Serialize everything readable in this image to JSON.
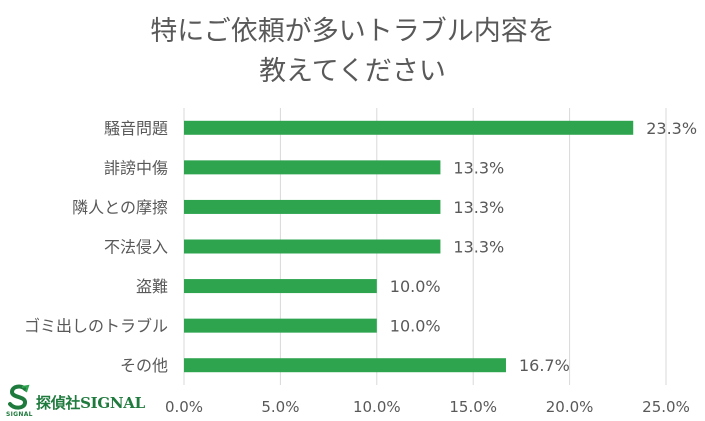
{
  "chart_data": {
    "type": "bar",
    "orientation": "horizontal",
    "title_lines": [
      "特にご依頼が多いトラブル内容を",
      "教えてください"
    ],
    "categories": [
      "騒音問題",
      "誹謗中傷",
      "隣人との摩擦",
      "不法侵入",
      "盗難",
      "ゴミ出しのトラブル",
      "その他"
    ],
    "values": [
      23.3,
      13.3,
      13.3,
      13.3,
      10.0,
      10.0,
      16.7
    ],
    "data_labels": [
      "23.3%",
      "13.3%",
      "13.3%",
      "13.3%",
      "10.0%",
      "10.0%",
      "16.7%"
    ],
    "x_ticks": [
      "0.0%",
      "5.0%",
      "10.0%",
      "15.0%",
      "20.0%",
      "25.0%"
    ],
    "xlim": [
      0,
      25
    ],
    "xlabel": "",
    "ylabel": "",
    "grid": true,
    "bar_color": "#2ea44f",
    "grid_color": "#d9d9d9"
  },
  "logo": {
    "text": "探偵社SIGNAL",
    "sub": "SIGNAL",
    "mark": "S",
    "color": "#1f7a3d"
  }
}
